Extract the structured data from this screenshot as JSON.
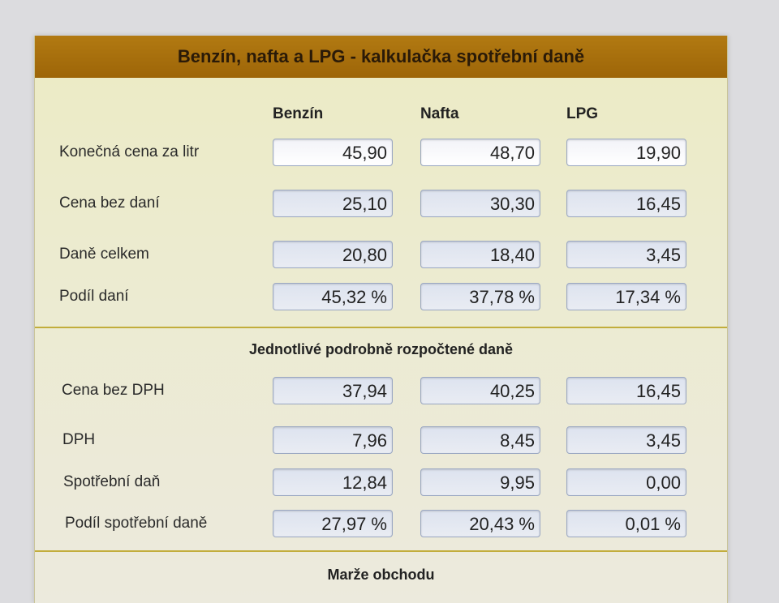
{
  "title": "Benzín, nafta a LPG - kalkulačka spotřební daně",
  "columns": [
    "Benzín",
    "Nafta",
    "LPG"
  ],
  "summary_rows": [
    {
      "label": "Konečná cena za litr",
      "values": [
        "45,90",
        "48,70",
        "19,90"
      ]
    },
    {
      "label": "Cena bez daní",
      "values": [
        "25,10",
        "30,30",
        "16,45"
      ]
    },
    {
      "label": "Daně celkem",
      "values": [
        "20,80",
        "18,40",
        "3,45"
      ]
    },
    {
      "label": "Podíl daní",
      "values": [
        "45,32 %",
        "37,78 %",
        "17,34 %"
      ]
    }
  ],
  "detail_section_title": "Jednotlivé podrobně rozpočtené daně",
  "detail_rows": [
    {
      "label": "Cena bez DPH",
      "values": [
        "37,94",
        "40,25",
        "16,45"
      ]
    },
    {
      "label": "DPH",
      "values": [
        "7,96",
        "8,45",
        "3,45"
      ]
    },
    {
      "label": "Spotřební daň",
      "values": [
        "12,84",
        "9,95",
        "0,00"
      ]
    },
    {
      "label": "Podíl spotřební daně",
      "values": [
        "27,97 %",
        "20,43 %",
        "0,01 %"
      ]
    }
  ],
  "margin_section_title": "Marže obchodu",
  "colors": {
    "header": "#a06a0c",
    "panel": "#ecebc4",
    "divider": "#c2ad3c",
    "field_border": "#9aa7c2"
  }
}
